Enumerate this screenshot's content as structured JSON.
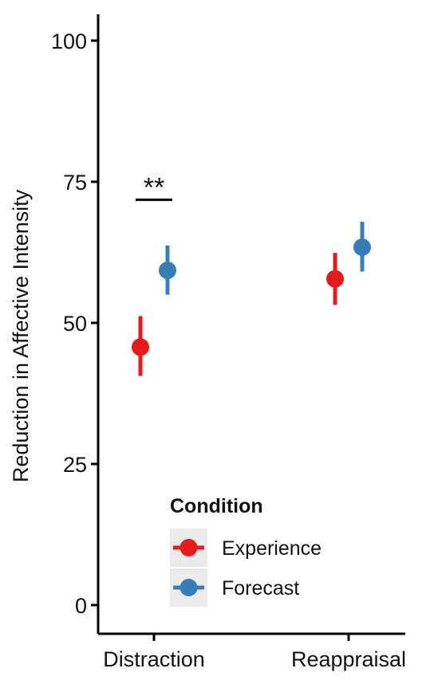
{
  "chart_data": {
    "type": "scatter",
    "subtype": "point-range",
    "title": "",
    "xlabel": "",
    "ylabel": "Reduction in Affective Intensity",
    "categories": [
      "Distraction",
      "Reappraisal"
    ],
    "ylim": [
      -4,
      105
    ],
    "yticks": [
      0,
      25,
      50,
      75,
      100
    ],
    "grid": false,
    "legend": {
      "title": "Condition",
      "placement": "bottom-right inside plot"
    },
    "series": [
      {
        "name": "Experience",
        "color": "#E41A1C",
        "points": [
          {
            "category": "Distraction",
            "value": 45.7,
            "lower": 40.6,
            "upper": 51.2
          },
          {
            "category": "Reappraisal",
            "value": 57.8,
            "lower": 53.2,
            "upper": 62.4
          }
        ]
      },
      {
        "name": "Forecast",
        "color": "#377EB8",
        "points": [
          {
            "category": "Distraction",
            "value": 59.3,
            "lower": 55.0,
            "upper": 63.7
          },
          {
            "category": "Reappraisal",
            "value": 63.4,
            "lower": 59.1,
            "upper": 67.9
          }
        ]
      }
    ],
    "annotations": [
      {
        "text": "**",
        "category": "Distraction",
        "y_bracket": 71.8,
        "description": "significance bracket spanning Experience and Forecast"
      }
    ]
  }
}
